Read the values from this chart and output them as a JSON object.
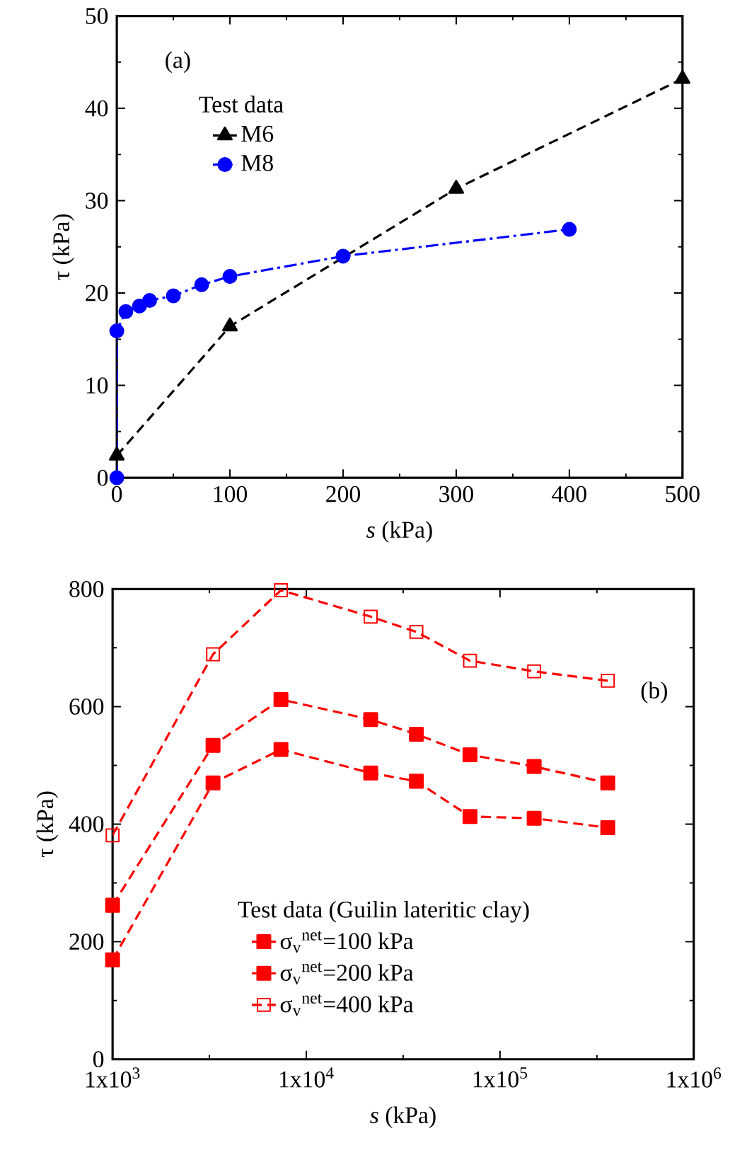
{
  "chart_data": [
    {
      "type": "line",
      "annotations": [
        "(a)"
      ],
      "xlabel": "*s* (kPa)",
      "ylabel": "τ (kPa)",
      "legend_title": "Test data",
      "xlim": [
        0,
        500
      ],
      "ylim": [
        0,
        50
      ],
      "xticks": [
        0,
        100,
        200,
        300,
        400,
        500
      ],
      "yticks": [
        0,
        10,
        20,
        30,
        40,
        50
      ],
      "legend": "top left",
      "series": [
        {
          "name": "M6",
          "color": "#000000",
          "marker": "triangle",
          "line_style": "dashed",
          "x": [
            0,
            100,
            300,
            500
          ],
          "values": [
            2.4,
            16.4,
            31.3,
            43.2
          ]
        },
        {
          "name": "M8",
          "color": "#0000ff",
          "marker": "circle",
          "line_style": "dashdot",
          "x": [
            0,
            0,
            8,
            20,
            29,
            50,
            75,
            100,
            200,
            400
          ],
          "values": [
            0,
            15.9,
            18.0,
            18.6,
            19.2,
            19.7,
            20.9,
            21.8,
            24.0,
            26.9
          ]
        }
      ]
    },
    {
      "type": "line",
      "annotations": [
        "(b)"
      ],
      "xlabel": "*s* (kPa)",
      "ylabel": "τ (kPa)",
      "legend_title": "Test data (Guilin lateritic clay)",
      "log": "x",
      "xlim": [
        1000,
        1000000
      ],
      "ylim": [
        0,
        800
      ],
      "xticks": [
        {
          "value": 1000,
          "label": "1x10$^{3}$"
        },
        {
          "value": 10000,
          "label": "1x10$^{4}$"
        },
        {
          "value": 100000,
          "label": "1x10$^{5}$"
        },
        {
          "value": 1000000,
          "label": "1x10$^{6}$"
        }
      ],
      "yticks": [
        0,
        200,
        400,
        600,
        800
      ],
      "legend": "bottom",
      "series": [
        {
          "name": "σ$_{v}$$^{net}$=100 kPa",
          "color": "#ff0000",
          "marker": "square",
          "line_style": "dashed",
          "x": [
            1000,
            3300,
            7400,
            21500,
            37000,
            70000,
            150000,
            360000
          ],
          "values": [
            169,
            470,
            527,
            487,
            473,
            413,
            410,
            394
          ]
        },
        {
          "name": "σ$_{v}$$^{net}$=200 kPa",
          "color": "#ff0000",
          "marker": "square",
          "line_style": "dashed",
          "x": [
            1000,
            3300,
            7400,
            21500,
            37000,
            70000,
            150000,
            360000
          ],
          "values": [
            262,
            534,
            612,
            578,
            553,
            518,
            498,
            470
          ]
        },
        {
          "name": "σ$_{v}$$^{net}$=400 kPa",
          "color": "#ff0000",
          "marker": "square",
          "line_style": "dashed",
          "x": [
            1000,
            3300,
            7400,
            21500,
            37000,
            70000,
            150000,
            360000
          ],
          "values": [
            381,
            689,
            798,
            753,
            727,
            678,
            660,
            644
          ]
        }
      ]
    }
  ]
}
